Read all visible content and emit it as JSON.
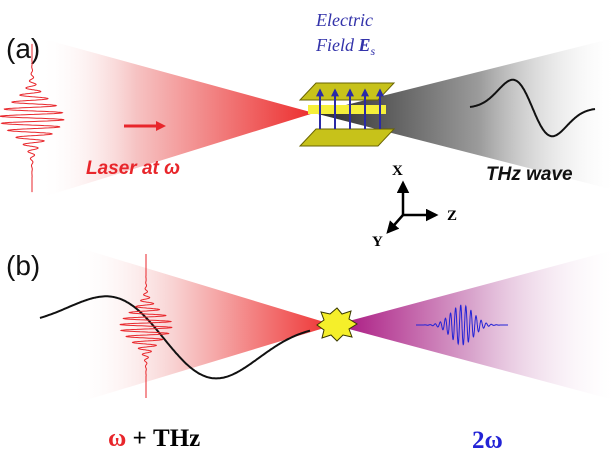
{
  "panels": {
    "a": {
      "label": "(a)",
      "field_label_line1": "Electric",
      "field_label_line2_prefix": "Field ",
      "field_symbol": "E",
      "field_subscript": "s",
      "laser_label": "Laser at ω",
      "thz_label": "THz wave"
    },
    "b": {
      "label": "(b)",
      "input_omega": "ω",
      "input_rest": " + THz",
      "output_label": "2ω"
    }
  },
  "axes": {
    "x": "X",
    "y": "Y",
    "z": "Z"
  },
  "colors": {
    "laser_red": "#e8262b",
    "thz_black": "#111111",
    "plate_fill": "#c7c21a",
    "plate_stroke": "#6a6400",
    "crystal_yellow": "#f5ef3a",
    "field_arrow": "#2a2aa6",
    "second_harmonic_blue": "#2323d6",
    "purple_beam": "#b0208c",
    "label_blue": "#3333aa"
  }
}
